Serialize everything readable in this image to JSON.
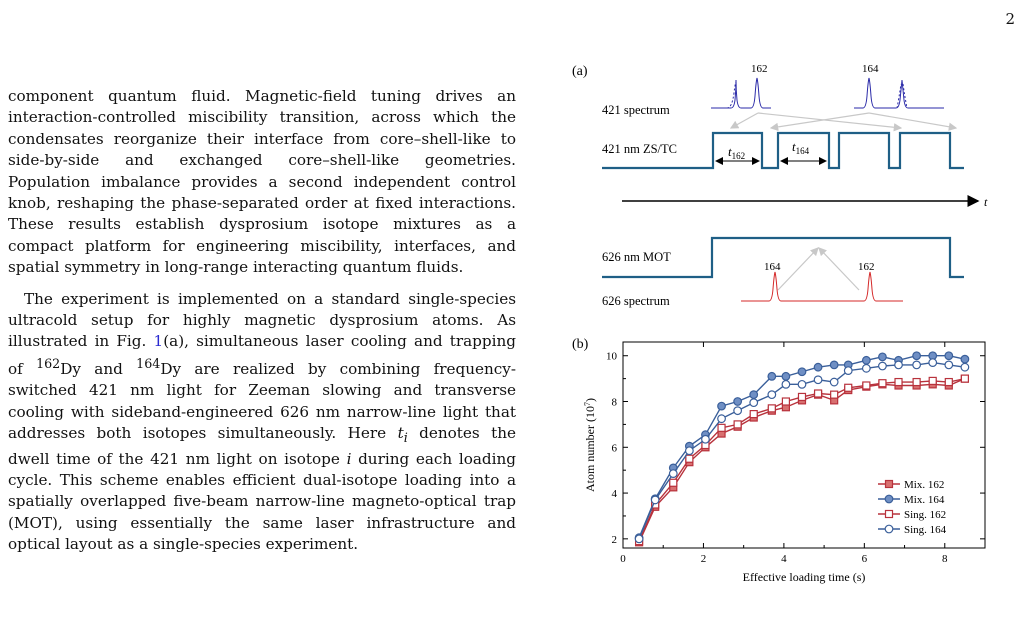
{
  "page": {
    "number": "2"
  },
  "paragraphs": [
    {
      "text": "component quantum fluid. Magnetic-field tuning drives an interaction-controlled miscibility transition, across which the condensates reorganize their interface from core–shell-like to side-by-side and exchanged core–shell-like geometries. Population imbalance provides a second independent control knob, reshaping the phase-separated order at fixed interactions. These results establish dysprosium isotope mixtures as a compact platform for engineering miscibility, interfaces, and spatial symmetry in long-range interacting quantum fluids."
    },
    {
      "p1": "The experiment is implemented on a standard single-species ultracold setup for highly magnetic dysprosium atoms. As illustrated in Fig. ",
      "cite": "1",
      "p2": "(a), simultaneous laser cooling and trapping of ",
      "iso1": "162",
      "el1": "Dy and ",
      "iso2": "164",
      "el2": "Dy are realized by combining frequency-switched 421 nm light for Zeeman slowing and transverse cooling with sideband-engineered 626 nm narrow-line light that addresses both isotopes simultaneously. Here ",
      "var": "t",
      "sub": "i",
      "p3": " denotes the dwell time of the 421 nm light on isotope ",
      "var2": "i",
      "p4": " during each loading cycle. This scheme enables efficient dual-isotope loading into a spatially overlapped five-beam narrow-line magneto-optical trap (MOT), using essentially the same laser infrastructure and optical layout as a single-species experiment."
    }
  ],
  "figure_a": {
    "label": "(a)",
    "row_421_spectrum": "421 spectrum",
    "row_421_zs": "421 nm ZS/TC",
    "row_626_mot": "626 nm MOT",
    "row_626_spectrum": "626 spectrum",
    "peak_162": "162",
    "peak_164": "164",
    "t162_var": "t",
    "t162_sub": "162",
    "t164_var": "t",
    "t164_sub": "164",
    "time_axis": "t",
    "colors": {
      "blue": "#2a2aa8",
      "red": "#d42828",
      "timeline": "#1f5f86",
      "arrow": "#c8c8c8"
    }
  },
  "chart_data": {
    "type": "line",
    "panel_label": "(b)",
    "xlabel": "Effective loading time (s)",
    "ylabel": "Atom number (10",
    "ylabel_sup": "7",
    "ylabel_end": ")",
    "xlim": [
      0,
      9
    ],
    "ylim": [
      1.6,
      10.6
    ],
    "xticks": [
      0,
      2,
      4,
      6,
      8
    ],
    "yticks": [
      2,
      4,
      6,
      8,
      10
    ],
    "x": [
      0.4,
      0.8,
      1.25,
      1.65,
      2.05,
      2.45,
      2.85,
      3.25,
      3.7,
      4.05,
      4.45,
      4.85,
      5.25,
      5.6,
      6.05,
      6.45,
      6.85,
      7.3,
      7.7,
      8.1,
      8.5
    ],
    "legend_position": "lower-right",
    "series": [
      {
        "name": "Mix. 162",
        "color": "#b8323c",
        "marker": "square-filled",
        "values": [
          1.85,
          3.4,
          4.25,
          5.35,
          6.0,
          6.6,
          6.9,
          7.3,
          7.6,
          7.75,
          8.05,
          8.3,
          8.05,
          8.5,
          8.65,
          8.75,
          8.7,
          8.7,
          8.75,
          8.7,
          9.0
        ]
      },
      {
        "name": "Mix. 164",
        "color": "#3a5f9a",
        "marker": "circle-filled",
        "values": [
          2.05,
          3.75,
          5.1,
          6.05,
          6.55,
          7.8,
          8.0,
          8.3,
          9.1,
          9.1,
          9.3,
          9.5,
          9.6,
          9.6,
          9.8,
          9.95,
          9.8,
          10.0,
          10.0,
          10.0,
          9.85
        ]
      },
      {
        "name": "Sing. 162",
        "color": "#b8323c",
        "marker": "square-open",
        "values": [
          1.9,
          3.5,
          4.45,
          5.5,
          6.1,
          6.85,
          7.0,
          7.45,
          7.7,
          8.0,
          8.2,
          8.35,
          8.3,
          8.6,
          8.7,
          8.8,
          8.85,
          8.85,
          8.9,
          8.85,
          9.0
        ]
      },
      {
        "name": "Sing. 164",
        "color": "#3a5f9a",
        "marker": "circle-open",
        "values": [
          2.0,
          3.7,
          4.85,
          5.85,
          6.35,
          7.25,
          7.6,
          7.95,
          8.3,
          8.75,
          8.75,
          8.95,
          8.85,
          9.35,
          9.45,
          9.55,
          9.6,
          9.6,
          9.7,
          9.6,
          9.5
        ]
      }
    ]
  }
}
